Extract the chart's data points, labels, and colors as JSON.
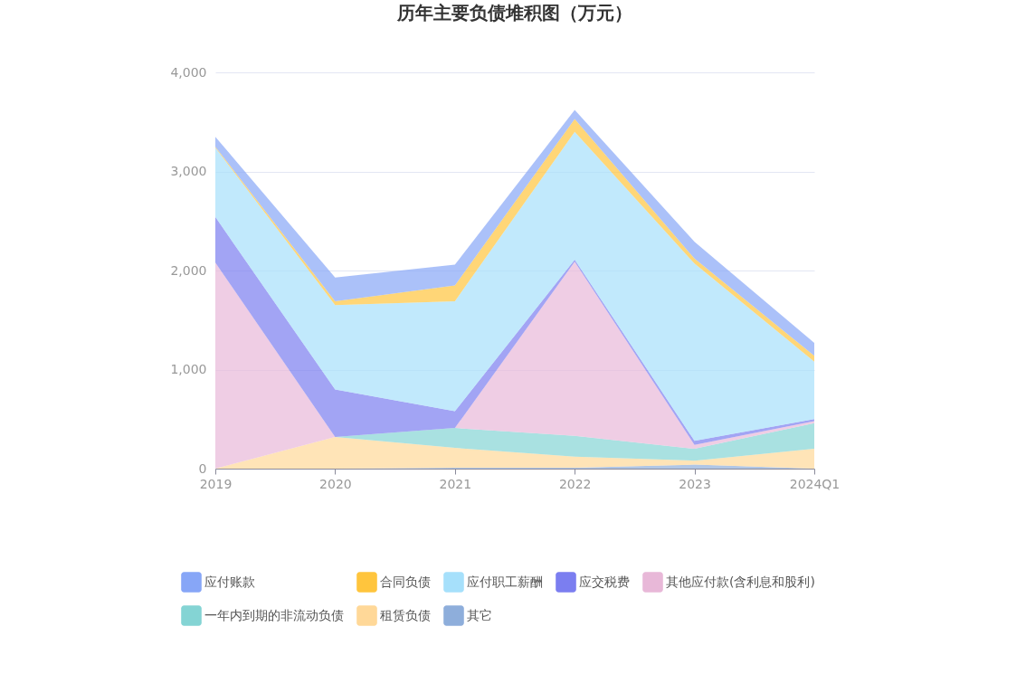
{
  "chart_data": {
    "type": "area",
    "title": "历年主要负债堆积图（万元）",
    "categories": [
      "2019",
      "2020",
      "2021",
      "2022",
      "2023",
      "2024Q1"
    ],
    "stacked": true,
    "series": [
      {
        "name": "其它",
        "color": "#8eaedb",
        "values": [
          0,
          0,
          10,
          10,
          40,
          0
        ]
      },
      {
        "name": "租赁负债",
        "color": "#ffd898",
        "values": [
          0,
          320,
          200,
          110,
          40,
          200
        ]
      },
      {
        "name": "一年内到期的非流动负债",
        "color": "#84d4d4",
        "values": [
          0,
          0,
          200,
          210,
          120,
          260
        ]
      },
      {
        "name": "其他应付款(含利息和股利)",
        "color": "#e8b8d8",
        "values": [
          2080,
          0,
          0,
          1760,
          40,
          20
        ]
      },
      {
        "name": "应交税费",
        "color": "#7b7ef0",
        "values": [
          460,
          480,
          170,
          20,
          40,
          20
        ]
      },
      {
        "name": "应付职工薪酬",
        "color": "#a6e0fb",
        "values": [
          700,
          850,
          1110,
          1290,
          1790,
          580
        ]
      },
      {
        "name": "合同负债",
        "color": "#ffc53d",
        "values": [
          10,
          40,
          160,
          130,
          50,
          60
        ]
      },
      {
        "name": "应付账款",
        "color": "#87a6f7",
        "values": [
          100,
          240,
          210,
          90,
          170,
          130
        ]
      }
    ],
    "ylim": [
      0,
      4000
    ],
    "yticks": [
      0,
      {
        "value": 1000,
        "label": "1,000"
      },
      {
        "value": 2000,
        "label": "2,000"
      },
      {
        "value": 3000,
        "label": "3,000"
      },
      {
        "value": 4000,
        "label": "4,000"
      }
    ],
    "grid": "y",
    "legend": "bottom"
  }
}
